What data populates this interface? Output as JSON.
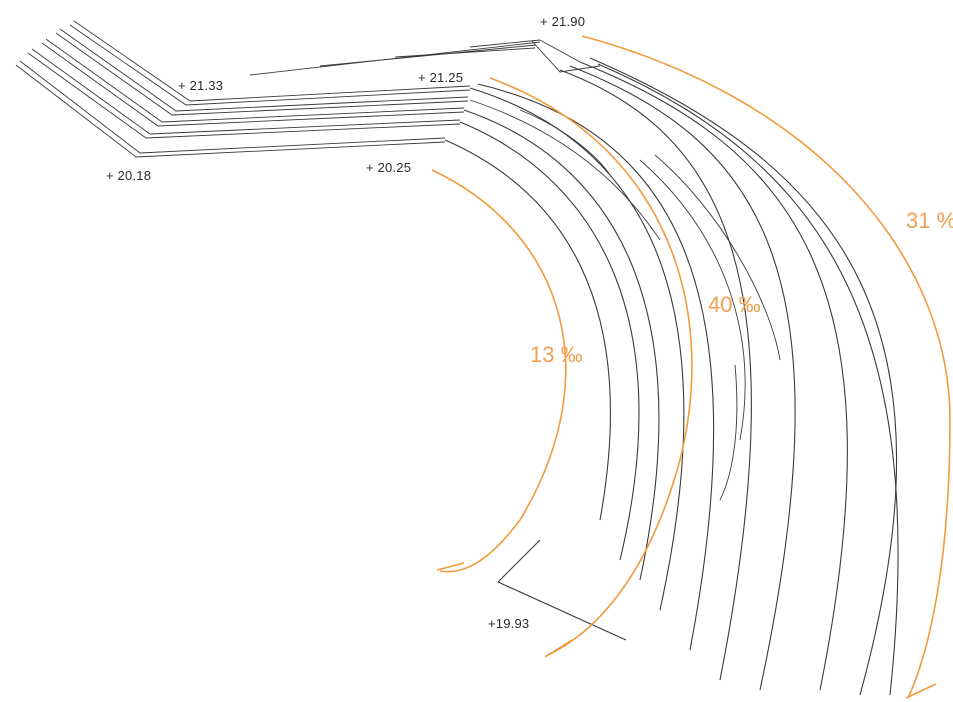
{
  "diagram": {
    "elevations": {
      "top": "+ 21.90",
      "upper_left": "+ 21.33",
      "upper_mid": "+ 21.25",
      "lower_left": "+ 20.18",
      "lower_mid": "+ 20.25",
      "bottom": "+19.93"
    },
    "gradients": {
      "inner": "13 ‰",
      "middle": "40 ‰",
      "outer": "31 %"
    },
    "colors": {
      "line": "#3a3a3a",
      "accent": "#f29a3e",
      "gradient_text": "#f0a050",
      "background": "#ffffff"
    }
  }
}
